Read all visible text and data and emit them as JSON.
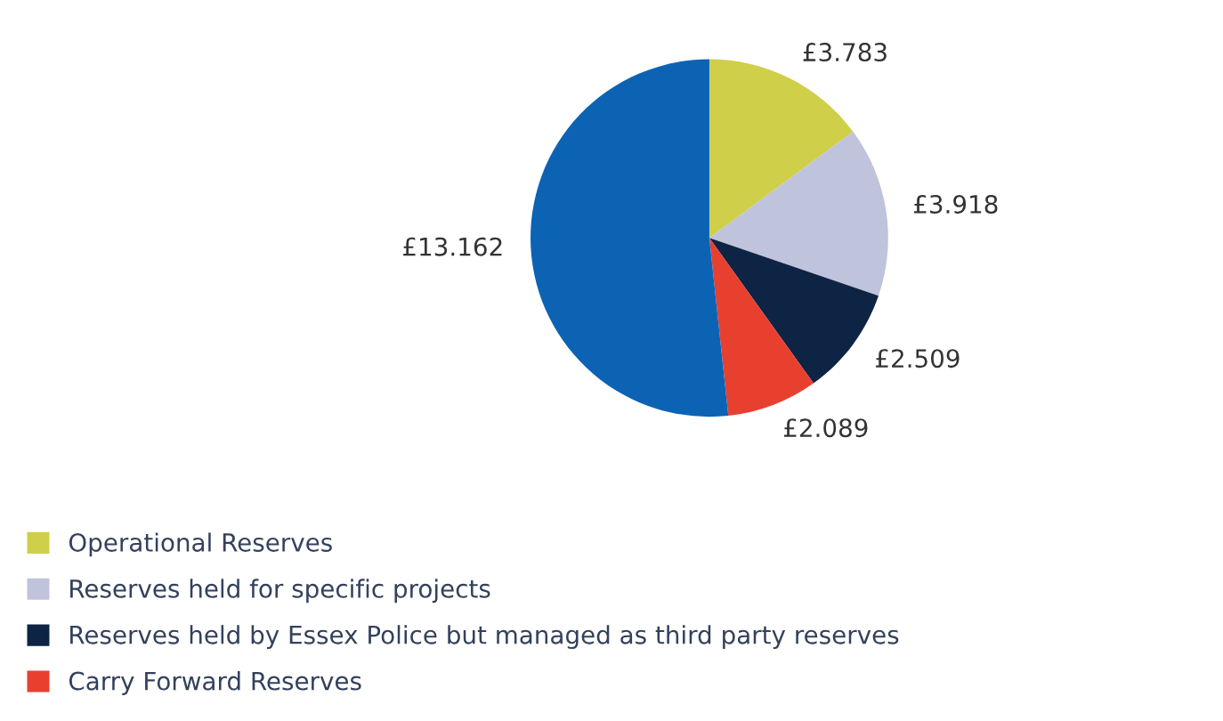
{
  "chart_data": {
    "type": "pie",
    "categories": [
      "Operational Reserves",
      "Reserves held for specific projects",
      "Reserves held by Essex Police but managed as third party reserves",
      "Carry Forward Reserves",
      null
    ],
    "values": [
      3.783,
      3.918,
      2.509,
      2.089,
      13.162
    ],
    "value_labels": [
      "£3.783",
      "£3.918",
      "£2.509",
      "£2.089",
      "£13.162"
    ],
    "colors": [
      "#cfcf4a",
      "#c0c3dc",
      "#0d2444",
      "#e8402f",
      "#0c63b4"
    ],
    "legend": "bottom left"
  }
}
